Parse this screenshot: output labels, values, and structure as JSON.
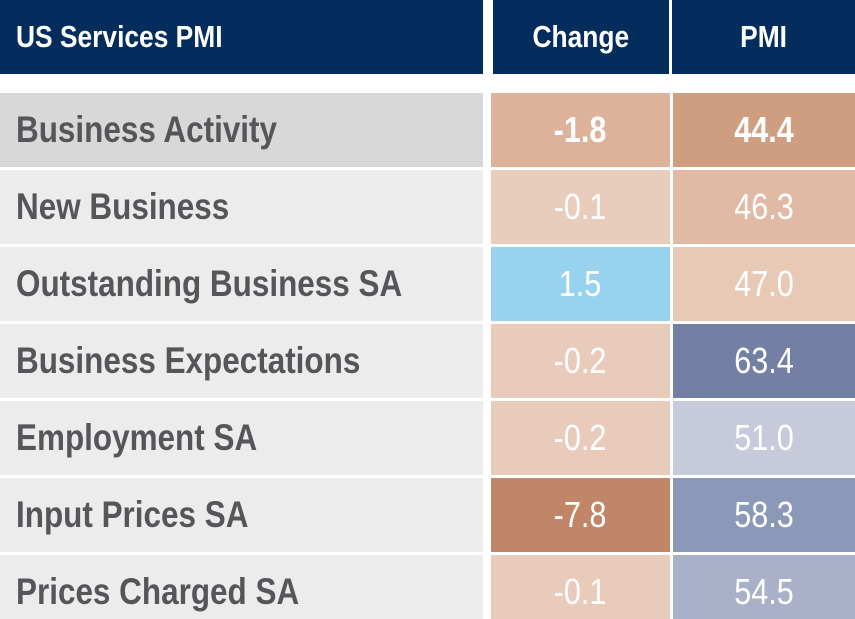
{
  "header": {
    "title": "US Services PMI",
    "change_label": "Change",
    "pmi_label": "PMI"
  },
  "chart_data": {
    "type": "table",
    "columns": [
      "US Services PMI",
      "Change",
      "PMI"
    ],
    "rows": [
      {
        "name": "Business Activity",
        "change": "-1.8",
        "pmi": "44.4",
        "highlight": true,
        "change_color": "#dcb29b",
        "pmi_color": "#cf9d80",
        "name_bg": "#d8d8d8"
      },
      {
        "name": "New Business",
        "change": "-0.1",
        "pmi": "46.3",
        "highlight": false,
        "change_color": "#e8ccbc",
        "pmi_color": "#e0baa4",
        "name_bg": "#ececec"
      },
      {
        "name": "Outstanding Business SA",
        "change": "1.5",
        "pmi": "47.0",
        "highlight": false,
        "change_color": "#97d3ee",
        "pmi_color": "#e7c9b6",
        "name_bg": "#ececec"
      },
      {
        "name": "Business Expectations",
        "change": "-0.2",
        "pmi": "63.4",
        "highlight": false,
        "change_color": "#e8cbbb",
        "pmi_color": "#7380a3",
        "name_bg": "#ececec"
      },
      {
        "name": "Employment SA",
        "change": "-0.2",
        "pmi": "51.0",
        "highlight": false,
        "change_color": "#e8cbbb",
        "pmi_color": "#c6cadb",
        "name_bg": "#ececec"
      },
      {
        "name": "Input Prices SA",
        "change": "-7.8",
        "pmi": "58.3",
        "highlight": false,
        "change_color": "#c18568",
        "pmi_color": "#8c98b7",
        "name_bg": "#ececec"
      },
      {
        "name": "Prices Charged SA",
        "change": "-0.1",
        "pmi": "54.5",
        "highlight": false,
        "change_color": "#e8cbbb",
        "pmi_color": "#aab0ca",
        "name_bg": "#ececec"
      }
    ]
  }
}
